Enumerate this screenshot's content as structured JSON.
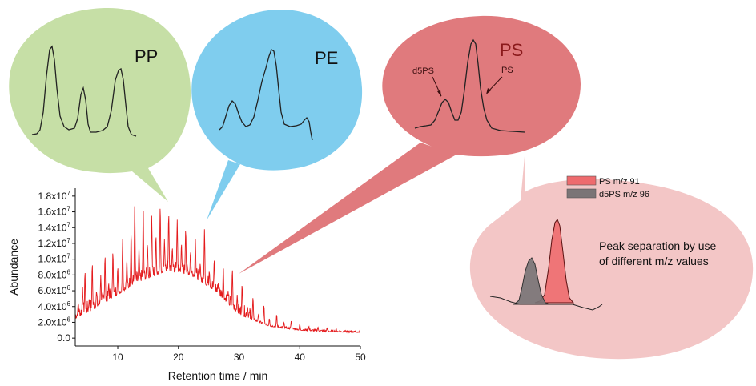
{
  "bubbles": {
    "pp": {
      "label": "PP",
      "fill": "#c6dfa6"
    },
    "pe": {
      "label": "PE",
      "fill": "#7fcdee"
    },
    "ps": {
      "label": "PS",
      "fill": "#e07a7d",
      "label_color": "#8b1a1c",
      "annotation_d5ps": "d5PS",
      "annotation_ps": "PS"
    },
    "detail": {
      "fill": "#f3c6c6",
      "legend": [
        {
          "label": "PS  m/z 91",
          "color": "#ee6b6e"
        },
        {
          "label": "d5PS  m/z 96",
          "color": "#7a7476"
        }
      ],
      "caption_line1": "Peak separation by use",
      "caption_line2": "of different m/z values"
    }
  },
  "chart_data": {
    "type": "line",
    "xlabel": "Retention time / min",
    "ylabel": "Abundance",
    "xlim": [
      3,
      50
    ],
    "ylim": [
      -1000000,
      19000000
    ],
    "x_ticks": [
      10,
      20,
      30,
      40,
      50
    ],
    "y_ticks": [
      {
        "value": 0,
        "label": "0.0"
      },
      {
        "value": 2000000,
        "label": "2.0x10",
        "exp": "6"
      },
      {
        "value": 4000000,
        "label": "4.0x10",
        "exp": "6"
      },
      {
        "value": 6000000,
        "label": "6.0x10",
        "exp": "6"
      },
      {
        "value": 8000000,
        "label": "8.0x10",
        "exp": "6"
      },
      {
        "value": 10000000,
        "label": "1.0x10",
        "exp": "7"
      },
      {
        "value": 12000000,
        "label": "1.2x10",
        "exp": "7"
      },
      {
        "value": 14000000,
        "label": "1.4x10",
        "exp": "7"
      },
      {
        "value": 16000000,
        "label": "1.6x10",
        "exp": "7"
      },
      {
        "value": 18000000,
        "label": "1.8x10",
        "exp": "7"
      }
    ],
    "line_color": "#e41a1c",
    "baseline_envelope": [
      [
        3,
        2500000
      ],
      [
        8,
        4500000
      ],
      [
        13,
        7000000
      ],
      [
        18,
        8500000
      ],
      [
        22,
        8000000
      ],
      [
        26,
        6000000
      ],
      [
        30,
        3000000
      ],
      [
        35,
        1500000
      ],
      [
        40,
        1000000
      ],
      [
        45,
        800000
      ],
      [
        50,
        700000
      ]
    ],
    "peaks": [
      [
        3.5,
        4500000
      ],
      [
        4.2,
        6500000
      ],
      [
        4.6,
        8500000
      ],
      [
        5.3,
        5000000
      ],
      [
        5.8,
        9500000
      ],
      [
        6.5,
        6000000
      ],
      [
        7.2,
        8000000
      ],
      [
        7.9,
        10500000
      ],
      [
        8.5,
        7000000
      ],
      [
        9.2,
        11000000
      ],
      [
        10.0,
        9000000
      ],
      [
        10.8,
        12500000
      ],
      [
        11.5,
        10000000
      ],
      [
        12.2,
        13500000
      ],
      [
        12.8,
        17200000
      ],
      [
        13.5,
        11500000
      ],
      [
        14.2,
        16500000
      ],
      [
        14.9,
        12000000
      ],
      [
        15.6,
        15500000
      ],
      [
        16.3,
        13000000
      ],
      [
        17.0,
        16800000
      ],
      [
        17.7,
        12500000
      ],
      [
        18.4,
        15800000
      ],
      [
        19.0,
        11500000
      ],
      [
        19.8,
        15000000
      ],
      [
        20.5,
        12000000
      ],
      [
        21.2,
        13800000
      ],
      [
        22.0,
        11000000
      ],
      [
        22.8,
        12500000
      ],
      [
        23.6,
        9500000
      ],
      [
        24.3,
        13800000
      ],
      [
        25.1,
        8500000
      ],
      [
        25.9,
        10000000
      ],
      [
        26.6,
        7000000
      ],
      [
        27.4,
        9000000
      ],
      [
        28.2,
        6000000
      ],
      [
        28.9,
        8800000
      ],
      [
        29.7,
        5500000
      ],
      [
        30.5,
        6800000
      ],
      [
        31.4,
        4000000
      ],
      [
        32.3,
        5200000
      ],
      [
        33.2,
        3000000
      ],
      [
        34.1,
        4200000
      ],
      [
        35.0,
        2500000
      ],
      [
        36.2,
        3000000
      ],
      [
        37.4,
        2000000
      ],
      [
        38.6,
        2200000
      ],
      [
        40.0,
        1800000
      ],
      [
        41.5,
        1500000
      ],
      [
        43.0,
        1400000
      ],
      [
        44.5,
        1300000
      ],
      [
        46.0,
        1200000
      ],
      [
        47.5,
        1000000
      ],
      [
        49.0,
        900000
      ]
    ]
  }
}
